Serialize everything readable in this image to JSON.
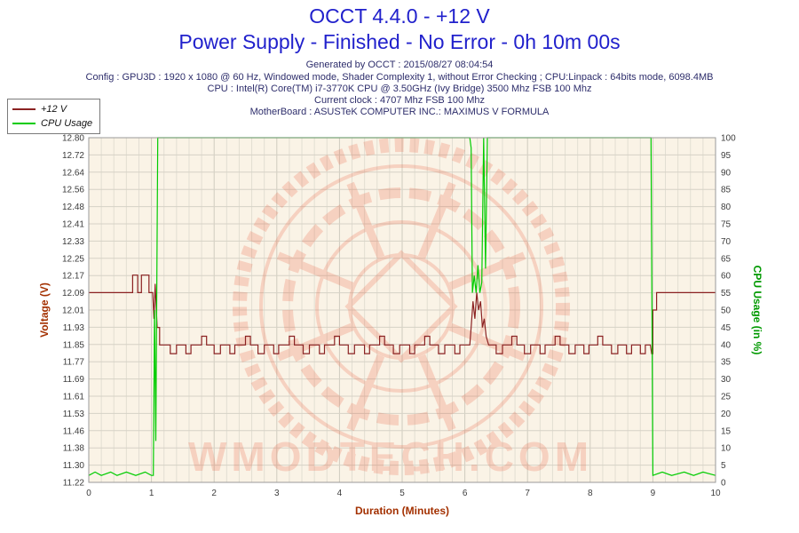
{
  "header": {
    "title": "OCCT 4.4.0 - +12 V",
    "subtitle": "Power Supply - Finished - No Error - 0h 10m 00s",
    "generated": "Generated by OCCT : 2015/08/27 08:04:54",
    "config": "Config : GPU3D : 1920 x 1080 @ 60 Hz, Windowed mode, Shader Complexity 1, without Error Checking ; CPU:Linpack : 64bits mode, 6098.4MB",
    "cpu": "CPU : Intel(R) Core(TM) i7-3770K CPU @ 3.50GHz (Ivy Bridge) 3500 Mhz FSB 100 Mhz",
    "clock": "Current clock : 4707 Mhz FSB 100 Mhz",
    "motherboard": "MotherBoard : ASUSTeK COMPUTER INC.: MAXIMUS V FORMULA"
  },
  "legend": {
    "items": [
      {
        "label": "+12 V",
        "color": "#8b2222"
      },
      {
        "label": "CPU Usage",
        "color": "#00cc00"
      }
    ]
  },
  "watermark": {
    "text": "WMODTECH.COM",
    "color": "#e8502c"
  },
  "colors": {
    "title_blue": "#2121cc",
    "info_navy": "#2d2d6b",
    "voltage_axis": "#a33000",
    "cpu_axis": "#009900",
    "plot_background": "#faf3e6"
  },
  "chart_data": {
    "type": "line",
    "title": "OCCT 4.4.0 - +12 V",
    "xlabel": "Duration (Minutes)",
    "ylabel_left": "Voltage (V)",
    "ylabel_right": "CPU Usage (in %)",
    "grid": true,
    "x_range": [
      0,
      10
    ],
    "x_ticks": [
      0,
      1,
      2,
      3,
      4,
      5,
      6,
      7,
      8,
      9,
      10
    ],
    "y_left_range": [
      11.22,
      12.8
    ],
    "y_left_tick_labels": [
      "12.80",
      "12.72",
      "12.64",
      "12.56",
      "12.48",
      "12.41",
      "12.33",
      "12.25",
      "12.17",
      "12.09",
      "12.01",
      "11.93",
      "11.85",
      "11.77",
      "11.69",
      "11.61",
      "11.53",
      "11.46",
      "11.38",
      "11.30",
      "11.22"
    ],
    "y_right_range": [
      0,
      100
    ],
    "y_right_ticks": [
      "100",
      "95",
      "90",
      "85",
      "80",
      "75",
      "70",
      "65",
      "60",
      "55",
      "50",
      "45",
      "40",
      "35",
      "30",
      "25",
      "20",
      "15",
      "10",
      "5",
      "0"
    ],
    "series": [
      {
        "name": "+12 V",
        "axis": "left",
        "color": "#8b2222",
        "points": [
          [
            0,
            12.09
          ],
          [
            0.7,
            12.09
          ],
          [
            0.7,
            12.17
          ],
          [
            0.78,
            12.17
          ],
          [
            0.78,
            12.09
          ],
          [
            0.84,
            12.09
          ],
          [
            0.84,
            12.17
          ],
          [
            0.96,
            12.17
          ],
          [
            0.96,
            12.09
          ],
          [
            1.02,
            12.09
          ],
          [
            1.04,
            11.97
          ],
          [
            1.06,
            12.13
          ],
          [
            1.09,
            11.93
          ],
          [
            1.13,
            11.93
          ],
          [
            1.13,
            11.85
          ],
          [
            1.3,
            11.85
          ],
          [
            1.3,
            11.81
          ],
          [
            1.4,
            11.81
          ],
          [
            1.4,
            11.85
          ],
          [
            1.55,
            11.85
          ],
          [
            1.55,
            11.81
          ],
          [
            1.63,
            11.81
          ],
          [
            1.63,
            11.85
          ],
          [
            1.8,
            11.85
          ],
          [
            1.8,
            11.89
          ],
          [
            1.88,
            11.89
          ],
          [
            1.88,
            11.85
          ],
          [
            2.0,
            11.85
          ],
          [
            2.0,
            11.81
          ],
          [
            2.1,
            11.81
          ],
          [
            2.1,
            11.85
          ],
          [
            2.25,
            11.85
          ],
          [
            2.25,
            11.81
          ],
          [
            2.33,
            11.81
          ],
          [
            2.33,
            11.85
          ],
          [
            2.5,
            11.85
          ],
          [
            2.5,
            11.89
          ],
          [
            2.58,
            11.89
          ],
          [
            2.58,
            11.85
          ],
          [
            2.7,
            11.85
          ],
          [
            2.7,
            11.81
          ],
          [
            2.8,
            11.81
          ],
          [
            2.8,
            11.85
          ],
          [
            2.95,
            11.85
          ],
          [
            2.95,
            11.81
          ],
          [
            3.03,
            11.81
          ],
          [
            3.03,
            11.85
          ],
          [
            3.2,
            11.85
          ],
          [
            3.2,
            11.89
          ],
          [
            3.28,
            11.89
          ],
          [
            3.28,
            11.85
          ],
          [
            3.42,
            11.85
          ],
          [
            3.42,
            11.81
          ],
          [
            3.52,
            11.81
          ],
          [
            3.52,
            11.85
          ],
          [
            3.68,
            11.85
          ],
          [
            3.68,
            11.81
          ],
          [
            3.76,
            11.81
          ],
          [
            3.76,
            11.85
          ],
          [
            3.92,
            11.85
          ],
          [
            3.92,
            11.89
          ],
          [
            4.0,
            11.89
          ],
          [
            4.0,
            11.85
          ],
          [
            4.14,
            11.85
          ],
          [
            4.14,
            11.81
          ],
          [
            4.24,
            11.81
          ],
          [
            4.24,
            11.85
          ],
          [
            4.4,
            11.85
          ],
          [
            4.4,
            11.81
          ],
          [
            4.48,
            11.81
          ],
          [
            4.48,
            11.85
          ],
          [
            4.64,
            11.85
          ],
          [
            4.64,
            11.89
          ],
          [
            4.72,
            11.89
          ],
          [
            4.72,
            11.85
          ],
          [
            4.86,
            11.85
          ],
          [
            4.86,
            11.81
          ],
          [
            4.96,
            11.81
          ],
          [
            4.96,
            11.85
          ],
          [
            5.12,
            11.85
          ],
          [
            5.12,
            11.81
          ],
          [
            5.2,
            11.81
          ],
          [
            5.2,
            11.85
          ],
          [
            5.36,
            11.85
          ],
          [
            5.36,
            11.89
          ],
          [
            5.44,
            11.89
          ],
          [
            5.44,
            11.85
          ],
          [
            5.58,
            11.85
          ],
          [
            5.58,
            11.81
          ],
          [
            5.68,
            11.81
          ],
          [
            5.68,
            11.85
          ],
          [
            5.84,
            11.85
          ],
          [
            5.84,
            11.81
          ],
          [
            5.92,
            11.81
          ],
          [
            5.92,
            11.85
          ],
          [
            6.08,
            11.85
          ],
          [
            6.1,
            11.93
          ],
          [
            6.13,
            12.05
          ],
          [
            6.16,
            11.97
          ],
          [
            6.19,
            12.09
          ],
          [
            6.22,
            12.01
          ],
          [
            6.25,
            12.05
          ],
          [
            6.28,
            11.93
          ],
          [
            6.31,
            11.97
          ],
          [
            6.34,
            11.89
          ],
          [
            6.38,
            11.85
          ],
          [
            6.5,
            11.85
          ],
          [
            6.5,
            11.81
          ],
          [
            6.6,
            11.81
          ],
          [
            6.6,
            11.85
          ],
          [
            6.75,
            11.85
          ],
          [
            6.75,
            11.89
          ],
          [
            6.83,
            11.89
          ],
          [
            6.83,
            11.85
          ],
          [
            6.95,
            11.85
          ],
          [
            6.95,
            11.81
          ],
          [
            7.05,
            11.81
          ],
          [
            7.05,
            11.85
          ],
          [
            7.2,
            11.85
          ],
          [
            7.2,
            11.81
          ],
          [
            7.28,
            11.81
          ],
          [
            7.28,
            11.85
          ],
          [
            7.44,
            11.85
          ],
          [
            7.44,
            11.89
          ],
          [
            7.52,
            11.89
          ],
          [
            7.52,
            11.85
          ],
          [
            7.66,
            11.85
          ],
          [
            7.66,
            11.81
          ],
          [
            7.76,
            11.81
          ],
          [
            7.76,
            11.85
          ],
          [
            7.9,
            11.85
          ],
          [
            7.9,
            11.81
          ],
          [
            7.98,
            11.81
          ],
          [
            7.98,
            11.85
          ],
          [
            8.12,
            11.85
          ],
          [
            8.12,
            11.89
          ],
          [
            8.2,
            11.89
          ],
          [
            8.2,
            11.85
          ],
          [
            8.34,
            11.85
          ],
          [
            8.34,
            11.81
          ],
          [
            8.44,
            11.81
          ],
          [
            8.44,
            11.85
          ],
          [
            8.58,
            11.85
          ],
          [
            8.58,
            11.81
          ],
          [
            8.66,
            11.81
          ],
          [
            8.66,
            11.85
          ],
          [
            8.8,
            11.85
          ],
          [
            8.8,
            11.81
          ],
          [
            8.88,
            11.81
          ],
          [
            8.88,
            11.85
          ],
          [
            8.96,
            11.85
          ],
          [
            8.98,
            11.81
          ],
          [
            9.0,
            11.81
          ],
          [
            9.0,
            12.01
          ],
          [
            9.06,
            12.01
          ],
          [
            9.06,
            12.09
          ],
          [
            9.12,
            12.09
          ],
          [
            10,
            12.09
          ]
        ]
      },
      {
        "name": "CPU Usage",
        "axis": "right",
        "color": "#00cc00",
        "points": [
          [
            0,
            2
          ],
          [
            0.1,
            3
          ],
          [
            0.2,
            2
          ],
          [
            0.35,
            3
          ],
          [
            0.45,
            2
          ],
          [
            0.6,
            3
          ],
          [
            0.75,
            2
          ],
          [
            0.9,
            3
          ],
          [
            1.0,
            2
          ],
          [
            1.03,
            2
          ],
          [
            1.05,
            50
          ],
          [
            1.07,
            12
          ],
          [
            1.1,
            100
          ],
          [
            6.08,
            100
          ],
          [
            6.1,
            97
          ],
          [
            6.12,
            55
          ],
          [
            6.15,
            60
          ],
          [
            6.18,
            55
          ],
          [
            6.21,
            63
          ],
          [
            6.24,
            55
          ],
          [
            6.27,
            58
          ],
          [
            6.3,
            100
          ],
          [
            6.33,
            62
          ],
          [
            6.36,
            100
          ],
          [
            8.97,
            100
          ],
          [
            9.0,
            2
          ],
          [
            9.15,
            3
          ],
          [
            9.3,
            2
          ],
          [
            9.5,
            3
          ],
          [
            9.65,
            2
          ],
          [
            9.8,
            3
          ],
          [
            10,
            2
          ]
        ]
      }
    ]
  }
}
